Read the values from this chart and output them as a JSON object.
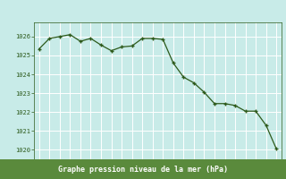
{
  "x": [
    0,
    1,
    2,
    3,
    4,
    5,
    6,
    7,
    8,
    9,
    10,
    11,
    12,
    13,
    14,
    15,
    16,
    17,
    18,
    19,
    20,
    21,
    22,
    23
  ],
  "y": [
    1025.35,
    1025.9,
    1026.0,
    1026.1,
    1025.75,
    1025.9,
    1025.55,
    1025.25,
    1025.45,
    1025.5,
    1025.9,
    1025.9,
    1025.85,
    1024.6,
    1023.85,
    1023.55,
    1023.05,
    1022.45,
    1022.45,
    1022.35,
    1022.05,
    1022.05,
    1021.3,
    1020.05
  ],
  "line_color": "#2d5a1b",
  "marker": "+",
  "marker_color": "#2d5a1b",
  "plot_bg_color": "#c8ebe8",
  "label_bg_color": "#5a8a3c",
  "grid_color": "#ffffff",
  "xlabel": "Graphe pression niveau de la mer (hPa)",
  "xlabel_color": "#ffffff",
  "tick_color": "#2d5a1b",
  "ytick_color": "#2d5a1b",
  "ylim": [
    1019.5,
    1026.75
  ],
  "xlim": [
    -0.5,
    23.5
  ],
  "yticks": [
    1020,
    1021,
    1022,
    1023,
    1024,
    1025,
    1026
  ],
  "xticks": [
    0,
    1,
    2,
    3,
    4,
    5,
    6,
    7,
    8,
    9,
    10,
    11,
    12,
    13,
    14,
    15,
    16,
    17,
    18,
    19,
    20,
    21,
    22,
    23
  ],
  "fig_width": 3.2,
  "fig_height": 2.0,
  "dpi": 100
}
